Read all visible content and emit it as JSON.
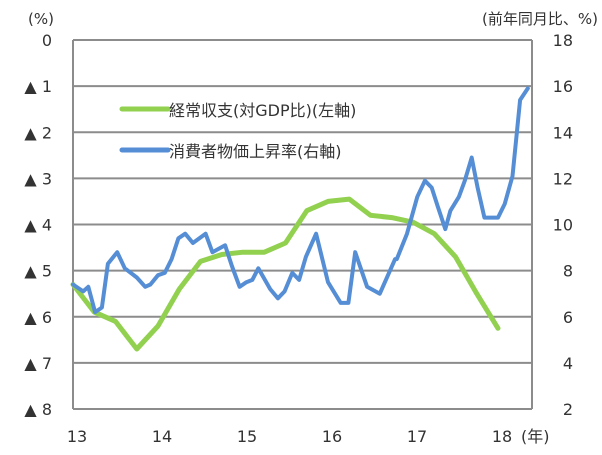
{
  "chart_data": {
    "type": "line",
    "title": "",
    "xlabel": "(年)",
    "ylabel_left": "(%)",
    "ylabel_right": "(前年同月比、%)",
    "x_ticks": [
      "13",
      "14",
      "15",
      "16",
      "17",
      "18"
    ],
    "x_range": [
      13,
      18.4
    ],
    "left_axis": {
      "range": [
        0,
        8
      ],
      "inverted": true,
      "ticks": [
        "0",
        "▲ 1",
        "▲ 2",
        "▲ 3",
        "▲ 4",
        "▲ 5",
        "▲ 6",
        "▲ 7",
        "▲ 8"
      ]
    },
    "right_axis": {
      "range": [
        2,
        18
      ],
      "ticks": [
        "18",
        "16",
        "14",
        "12",
        "10",
        "8",
        "6",
        "4",
        "2"
      ]
    },
    "grid": true,
    "legend_position": "top-left",
    "series": [
      {
        "name": "経常収支(対GDP比)(左軸)",
        "axis": "left",
        "color": "#92d050",
        "x": [
          13,
          13.25,
          13.5,
          13.75,
          14,
          14.25,
          14.5,
          14.75,
          15,
          15.25,
          15.5,
          15.75,
          16,
          16.25,
          16.5,
          16.75,
          17,
          17.25,
          17.5,
          17.75,
          18
        ],
        "values": [
          5.3,
          5.9,
          6.1,
          6.7,
          6.2,
          5.4,
          4.8,
          4.65,
          4.6,
          4.6,
          4.4,
          3.7,
          3.5,
          3.45,
          3.8,
          3.85,
          3.95,
          4.2,
          4.7,
          5.5,
          6.25
        ]
      },
      {
        "name": "消費者物価上昇率(右軸)",
        "axis": "right",
        "color": "#558ed5",
        "x": [
          13,
          13.12,
          13.18,
          13.26,
          13.34,
          13.41,
          13.52,
          13.61,
          13.75,
          13.85,
          13.91,
          14.0,
          14.08,
          14.16,
          14.24,
          14.32,
          14.41,
          14.56,
          14.64,
          14.79,
          14.87,
          14.96,
          15.04,
          15.11,
          15.18,
          15.32,
          15.41,
          15.49,
          15.58,
          15.66,
          15.74,
          15.86,
          16.0,
          16.15,
          16.24,
          16.32,
          16.46,
          16.61,
          16.79,
          16.81,
          16.93,
          17.05,
          17.14,
          17.22,
          17.29,
          17.38,
          17.44,
          17.54,
          17.61,
          17.69,
          17.76,
          17.84,
          17.92,
          18.0,
          18.08,
          18.17,
          18.26,
          18.35
        ],
        "values": [
          7.4,
          7.1,
          7.3,
          6.2,
          6.4,
          8.3,
          8.8,
          8.1,
          7.7,
          7.3,
          7.4,
          7.8,
          7.9,
          8.5,
          9.4,
          9.6,
          9.2,
          9.6,
          8.8,
          9.1,
          8.2,
          7.3,
          7.5,
          7.6,
          8.1,
          7.2,
          6.8,
          7.1,
          7.9,
          7.6,
          8.6,
          9.6,
          7.5,
          6.6,
          6.6,
          8.8,
          7.3,
          7.0,
          8.5,
          8.5,
          9.6,
          11.2,
          11.9,
          11.6,
          10.8,
          9.8,
          10.6,
          11.2,
          11.9,
          12.9,
          11.6,
          10.3,
          10.3,
          10.3,
          10.9,
          12.1,
          15.4,
          15.9
        ]
      }
    ]
  }
}
